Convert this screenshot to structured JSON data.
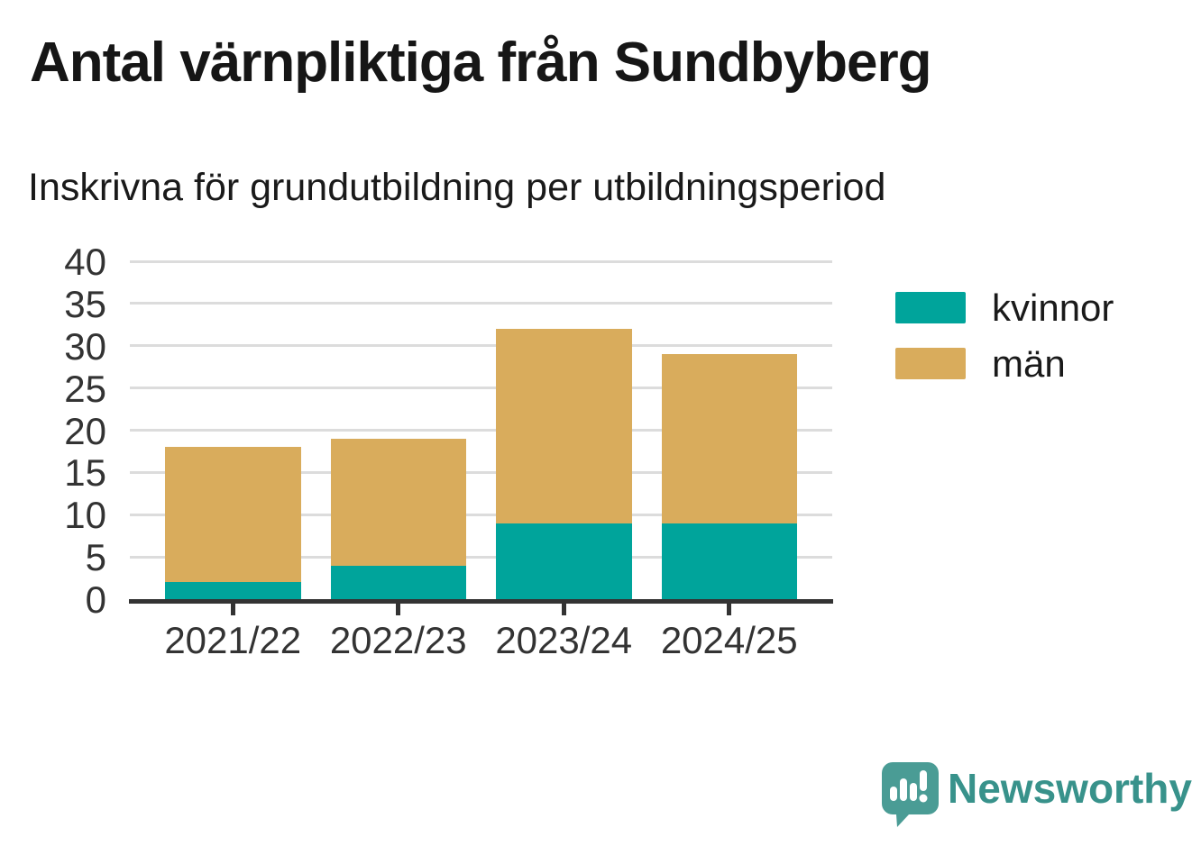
{
  "title": "Antal värnpliktiga från Sundbyberg",
  "subtitle": "Inskrivna för grundutbildning per utbildningsperiod",
  "colors": {
    "kvinnor": "#00a49b",
    "man": "#d9ac5c",
    "grid": "#dcdcdc",
    "axis": "#333333",
    "tick_text": "#333333",
    "heading_text": "#161616"
  },
  "chart_data": {
    "type": "bar",
    "stacked": true,
    "title": "Antal värnpliktiga från Sundbyberg",
    "subtitle": "Inskrivna för grundutbildning per utbildningsperiod",
    "categories": [
      "2021/22",
      "2022/23",
      "2023/24",
      "2024/25"
    ],
    "series": [
      {
        "name": "kvinnor",
        "color": "#00a49b",
        "values": [
          2,
          4,
          9,
          9
        ]
      },
      {
        "name": "män",
        "color": "#d9ac5c",
        "values": [
          16,
          15,
          23,
          20
        ]
      }
    ],
    "totals": [
      18,
      19,
      32,
      29
    ],
    "xlabel": "",
    "ylabel": "",
    "ylim": [
      0,
      40
    ],
    "yticks": [
      0,
      5,
      10,
      15,
      20,
      25,
      30,
      35,
      40
    ],
    "ytick_step": 5,
    "grid": true,
    "legend_position": "right"
  },
  "branding": {
    "name": "Newsworthy",
    "text_color": "#38928b",
    "mark_color": "#4a9c95",
    "mark_icon": "bar-chart-speech-bubble-icon"
  }
}
